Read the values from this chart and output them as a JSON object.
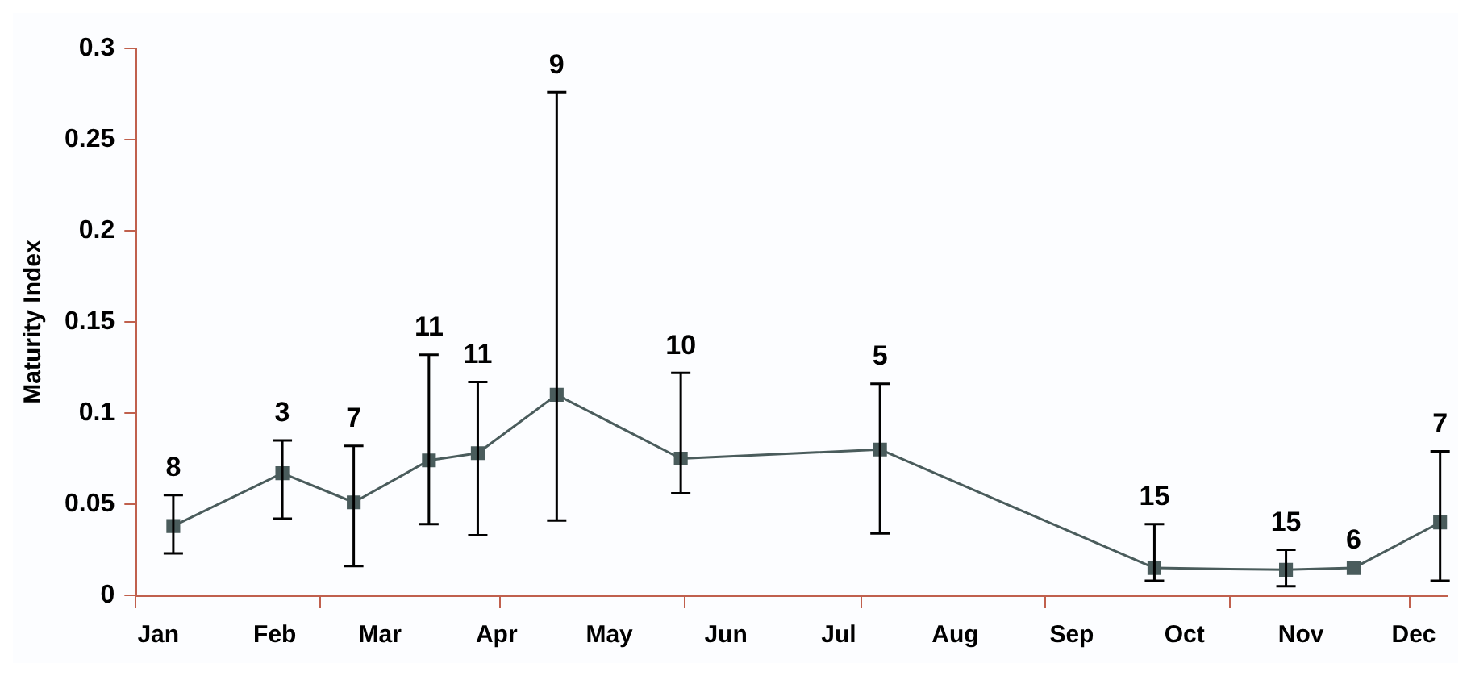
{
  "chart_data": {
    "type": "line",
    "ylabel": "Maturity Index",
    "x": [
      "--01-20",
      "--02-18",
      "--03-09",
      "--03-29",
      "--04-11",
      "--05-02",
      "--06-04",
      "--07-27",
      "--10-08",
      "--11-12",
      "--11-30",
      "--12-23"
    ],
    "series": [
      {
        "color": "#4a5c5c",
        "values": [
          0.038,
          0.067,
          0.051,
          0.074,
          0.078,
          0.11,
          0.075,
          0.08,
          0.015,
          0.014,
          0.015,
          0.04
        ],
        "errors": [
          [
            0.023,
            0.055
          ],
          [
            0.042,
            0.085
          ],
          [
            0.016,
            0.082
          ],
          [
            0.039,
            0.132
          ],
          [
            0.033,
            0.117
          ],
          [
            0.041,
            0.276
          ],
          [
            0.056,
            0.122
          ],
          [
            0.034,
            0.116
          ],
          [
            0.008,
            0.039
          ],
          [
            0.005,
            0.025
          ],
          null,
          [
            0.008,
            0.079
          ]
        ]
      }
    ],
    "xlim": [
      "--01-10",
      "--12-25"
    ],
    "xticks": [
      {
        "value": "--01-10",
        "label": null
      },
      {
        "value": "--01-16",
        "label": "Jan"
      },
      {
        "value": "--02-16",
        "label": "Feb"
      },
      {
        "value": "--02-28",
        "label": null
      },
      {
        "value": "--03-16",
        "label": "Mar"
      },
      {
        "value": "--04-16",
        "label": "Apr"
      },
      {
        "value": "--04-17",
        "label": null
      },
      {
        "value": "--05-16",
        "label": "May"
      },
      {
        "value": "--06-05",
        "label": null
      },
      {
        "value": "--06-16",
        "label": "Jun"
      },
      {
        "value": "--07-16",
        "label": "Jul"
      },
      {
        "value": "--07-22",
        "label": null
      },
      {
        "value": "--08-16",
        "label": "Aug"
      },
      {
        "value": "--09-09",
        "label": null
      },
      {
        "value": "--09-16",
        "label": "Sep"
      },
      {
        "value": "--10-16",
        "label": "Oct"
      },
      {
        "value": "--10-28",
        "label": null
      },
      {
        "value": "--11-16",
        "label": "Nov"
      },
      {
        "value": "--12-15",
        "label": null
      },
      {
        "value": "--12-16",
        "label": "Dec"
      }
    ],
    "ylim": [
      0,
      0.3
    ],
    "yticks": [
      0,
      0.05,
      0.1,
      0.15,
      0.2,
      0.25,
      0.3
    ],
    "grid": false,
    "legend": false,
    "marker": "square",
    "line_style": "solid",
    "annotations": [
      {
        "text": "8",
        "x": "--01-20",
        "y": 0.055
      },
      {
        "text": "3",
        "x": "--02-18",
        "y": 0.085
      },
      {
        "text": "7",
        "x": "--03-09",
        "y": 0.082
      },
      {
        "text": "11",
        "x": "--03-29",
        "y": 0.132
      },
      {
        "text": "11",
        "x": "--04-11",
        "y": 0.117
      },
      {
        "text": "9",
        "x": "--05-02",
        "y": 0.276
      },
      {
        "text": "10",
        "x": "--06-04",
        "y": 0.122
      },
      {
        "text": "5",
        "x": "--07-27",
        "y": 0.116
      },
      {
        "text": "15",
        "x": "--10-08",
        "y": 0.039
      },
      {
        "text": "15",
        "x": "--11-12",
        "y": 0.025
      },
      {
        "text": "6",
        "x": "--11-30",
        "y": 0.015
      },
      {
        "text": "7",
        "x": "--12-23",
        "y": 0.079
      }
    ]
  }
}
